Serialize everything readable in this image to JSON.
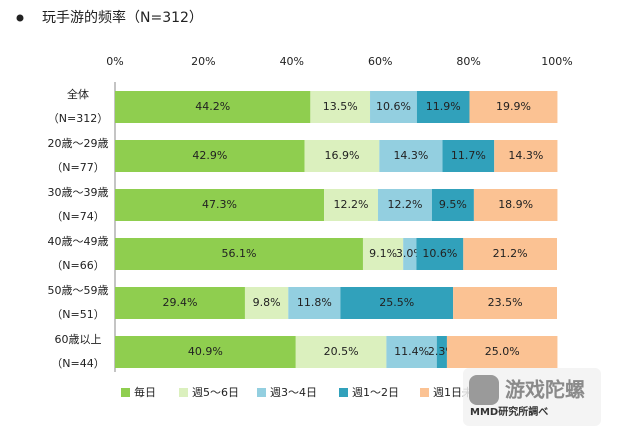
{
  "chart_data": {
    "type": "stacked-bar-horizontal",
    "title": "玩手游的频率（N=312）",
    "categories": [
      "全体",
      "20歳～29歳",
      "30歳～39歳",
      "40歳～49歳",
      "50歳～59歳",
      "60歳以上"
    ],
    "category_notes": [
      "（N=312）",
      "（N=77）",
      "（N=74）",
      "（N=66）",
      "（N=51）",
      "（N=44）"
    ],
    "xlim": [
      0,
      100
    ],
    "xticks": [
      {
        "value": 0,
        "label": "0%"
      },
      {
        "value": 20,
        "label": "20%"
      },
      {
        "value": 40,
        "label": "40%"
      },
      {
        "value": 60,
        "label": "60%"
      },
      {
        "value": 80,
        "label": "80%"
      },
      {
        "value": 100,
        "label": "100%"
      }
    ],
    "series": [
      {
        "name": "毎日",
        "color": "#8fce4f",
        "values": [
          44.2,
          42.9,
          47.3,
          56.1,
          29.4,
          40.9
        ],
        "value_labels": [
          "44.2%",
          "42.9%",
          "47.3%",
          "56.1%",
          "29.4%",
          "40.9%"
        ]
      },
      {
        "name": "週5～6日",
        "color": "#dbf0be",
        "values": [
          13.5,
          16.9,
          12.2,
          9.1,
          9.8,
          20.5
        ],
        "value_labels": [
          "13.5%",
          "16.9%",
          "12.2%",
          "9.1%",
          "9.8%",
          "20.5%"
        ]
      },
      {
        "name": "週3～4日",
        "color": "#93cfe0",
        "values": [
          10.6,
          14.3,
          12.2,
          3.0,
          11.8,
          11.4
        ],
        "value_labels": [
          "10.6%",
          "14.3%",
          "12.2%",
          "3.0%",
          "11.8%",
          "11.4%"
        ]
      },
      {
        "name": "週1～2日",
        "color": "#31a1bb",
        "values": [
          11.9,
          11.7,
          9.5,
          10.6,
          25.5,
          2.3
        ],
        "value_labels": [
          "11.9%",
          "11.7%",
          "9.5%",
          "10.6%",
          "25.5%",
          "2.3%"
        ]
      },
      {
        "name": "週1日未満",
        "color": "#fbc293",
        "values": [
          19.9,
          14.3,
          18.9,
          21.2,
          23.5,
          25.0
        ],
        "value_labels": [
          "19.9%",
          "14.3%",
          "18.9%",
          "21.2%",
          "23.5%",
          "25.0%"
        ]
      }
    ],
    "source": "MMD研究所調べ",
    "watermark": "游戏陀螺"
  }
}
